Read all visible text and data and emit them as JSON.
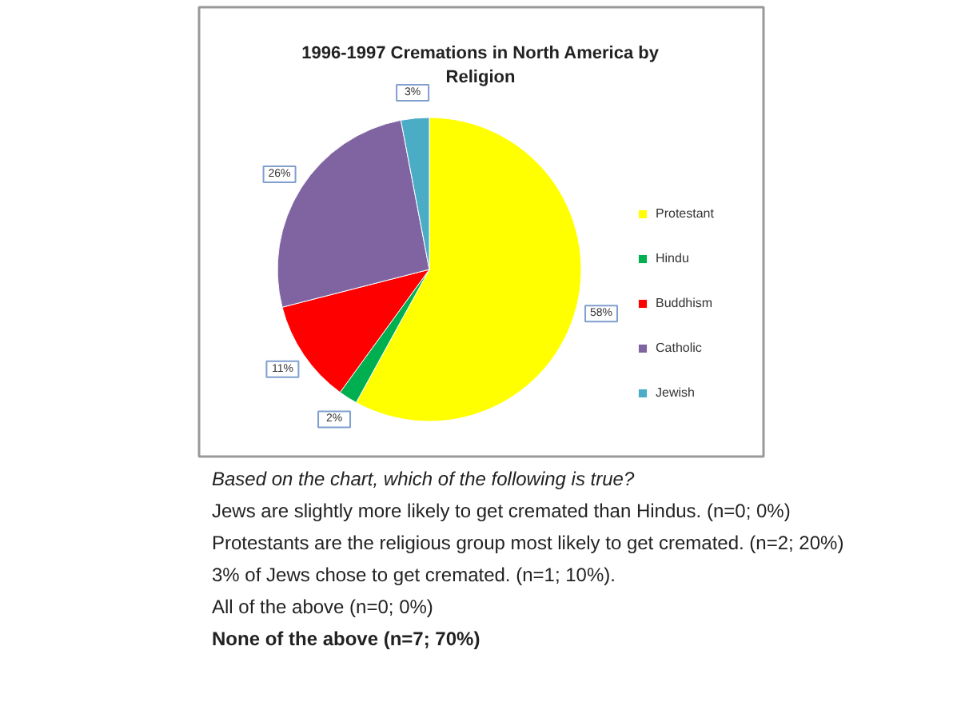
{
  "chart_data": {
    "type": "pie",
    "title": "1996-1997 Cremations in North America by Religion",
    "categories": [
      "Protestant",
      "Hindu",
      "Buddhism",
      "Catholic",
      "Jewish"
    ],
    "values": [
      58,
      2,
      11,
      26,
      3
    ],
    "value_labels": [
      "58%",
      "2%",
      "11%",
      "26%",
      "3%"
    ],
    "colors": [
      "#ffff00",
      "#00b050",
      "#ff0000",
      "#8064a2",
      "#4bacc6"
    ],
    "legend": "right",
    "annotations": [
      "Based on the chart, which of the following is true?",
      "Jews are slightly more likely to get cremated than Hindus. (n=0; 0%)",
      "Protestants are the religious group most likely to get cremated. (n=2; 20%)",
      "3% of Jews chose to get cremated. (n=1; 10%).",
      "All of the above (n=0; 0%)",
      "None of the above (n=7; 70%)"
    ]
  }
}
